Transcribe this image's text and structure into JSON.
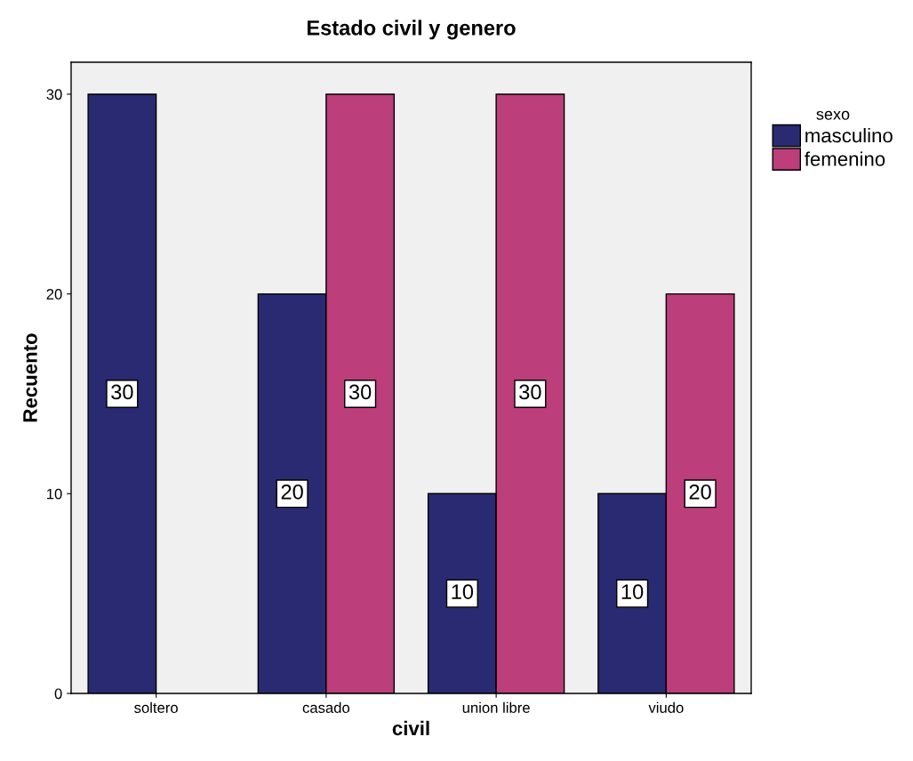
{
  "chart_data": {
    "type": "bar",
    "title": "Estado civil y genero",
    "xlabel": "civil",
    "ylabel": "Recuento",
    "legend_title": "sexo",
    "categories": [
      "soltero",
      "casado",
      "union libre",
      "viudo"
    ],
    "series": [
      {
        "name": "masculino",
        "color": "#2a2a72",
        "values": [
          30,
          20,
          10,
          10
        ]
      },
      {
        "name": "femenino",
        "color": "#bc3e7a",
        "values": [
          null,
          30,
          30,
          20
        ]
      }
    ],
    "ylim": [
      0,
      31.6
    ],
    "yticks": [
      0,
      10,
      20,
      30
    ],
    "grid": false,
    "legend": "top right",
    "data_labels": true
  }
}
